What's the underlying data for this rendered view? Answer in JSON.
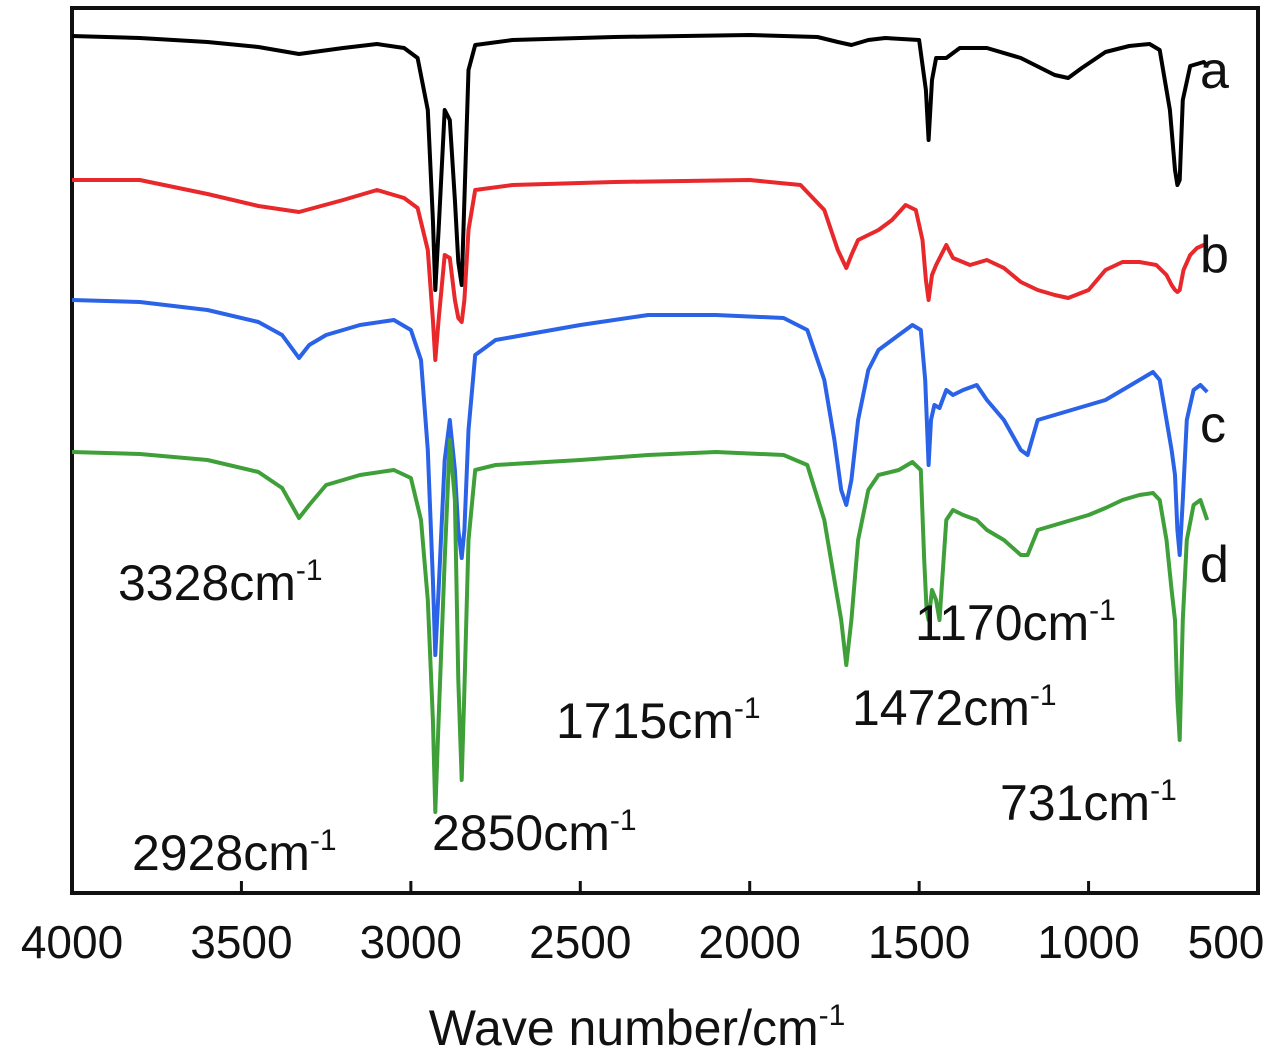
{
  "chart_data": {
    "type": "line",
    "x_axis": {
      "title": "Wave number/cm",
      "title_sup": "-1",
      "range": [
        4000,
        500
      ],
      "reversed": true,
      "ticks": [
        4000,
        3500,
        3000,
        2500,
        2000,
        1500,
        1000,
        500
      ],
      "tick_labels": [
        "4000",
        "3500",
        "3000",
        "2500",
        "2000",
        "1500",
        "1000",
        "500"
      ]
    },
    "y_axis": {
      "title": "",
      "ticks_shown": false
    },
    "grid": false,
    "series": [
      {
        "name": "a",
        "color": "#000000",
        "points": [
          [
            4000,
            36
          ],
          [
            3800,
            38
          ],
          [
            3600,
            42
          ],
          [
            3450,
            47
          ],
          [
            3330,
            54
          ],
          [
            3200,
            48
          ],
          [
            3100,
            44
          ],
          [
            3020,
            48
          ],
          [
            2980,
            58
          ],
          [
            2950,
            110
          ],
          [
            2935,
            220
          ],
          [
            2928,
            290
          ],
          [
            2918,
            230
          ],
          [
            2900,
            110
          ],
          [
            2885,
            120
          ],
          [
            2870,
            200
          ],
          [
            2860,
            262
          ],
          [
            2850,
            285
          ],
          [
            2842,
            200
          ],
          [
            2830,
            70
          ],
          [
            2810,
            45
          ],
          [
            2700,
            40
          ],
          [
            2400,
            37
          ],
          [
            2000,
            35
          ],
          [
            1800,
            37
          ],
          [
            1740,
            42
          ],
          [
            1700,
            45
          ],
          [
            1650,
            40
          ],
          [
            1600,
            38
          ],
          [
            1500,
            40
          ],
          [
            1480,
            90
          ],
          [
            1472,
            140
          ],
          [
            1462,
            80
          ],
          [
            1450,
            58
          ],
          [
            1420,
            58
          ],
          [
            1380,
            48
          ],
          [
            1300,
            48
          ],
          [
            1200,
            58
          ],
          [
            1100,
            75
          ],
          [
            1060,
            78
          ],
          [
            1020,
            68
          ],
          [
            950,
            52
          ],
          [
            880,
            46
          ],
          [
            820,
            44
          ],
          [
            790,
            50
          ],
          [
            760,
            110
          ],
          [
            745,
            170
          ],
          [
            738,
            185
          ],
          [
            731,
            180
          ],
          [
            722,
            100
          ],
          [
            700,
            66
          ],
          [
            660,
            62
          ],
          [
            650,
            66
          ]
        ]
      },
      {
        "name": "b",
        "color": "#e8282b",
        "points": [
          [
            4000,
            180
          ],
          [
            3800,
            180
          ],
          [
            3600,
            194
          ],
          [
            3450,
            206
          ],
          [
            3330,
            212
          ],
          [
            3200,
            200
          ],
          [
            3100,
            190
          ],
          [
            3020,
            198
          ],
          [
            2980,
            208
          ],
          [
            2950,
            250
          ],
          [
            2935,
            320
          ],
          [
            2928,
            360
          ],
          [
            2918,
            320
          ],
          [
            2900,
            255
          ],
          [
            2885,
            258
          ],
          [
            2870,
            300
          ],
          [
            2860,
            318
          ],
          [
            2850,
            322
          ],
          [
            2842,
            300
          ],
          [
            2830,
            230
          ],
          [
            2810,
            190
          ],
          [
            2700,
            185
          ],
          [
            2400,
            182
          ],
          [
            2000,
            180
          ],
          [
            1850,
            185
          ],
          [
            1780,
            210
          ],
          [
            1740,
            250
          ],
          [
            1715,
            268
          ],
          [
            1700,
            255
          ],
          [
            1680,
            240
          ],
          [
            1620,
            230
          ],
          [
            1580,
            220
          ],
          [
            1540,
            205
          ],
          [
            1510,
            210
          ],
          [
            1490,
            240
          ],
          [
            1480,
            280
          ],
          [
            1472,
            300
          ],
          [
            1462,
            275
          ],
          [
            1450,
            265
          ],
          [
            1420,
            245
          ],
          [
            1400,
            258
          ],
          [
            1350,
            265
          ],
          [
            1300,
            260
          ],
          [
            1250,
            268
          ],
          [
            1200,
            282
          ],
          [
            1150,
            290
          ],
          [
            1100,
            295
          ],
          [
            1060,
            298
          ],
          [
            1000,
            290
          ],
          [
            950,
            270
          ],
          [
            900,
            262
          ],
          [
            850,
            262
          ],
          [
            800,
            265
          ],
          [
            770,
            275
          ],
          [
            755,
            285
          ],
          [
            745,
            290
          ],
          [
            738,
            292
          ],
          [
            731,
            290
          ],
          [
            720,
            270
          ],
          [
            700,
            255
          ],
          [
            680,
            248
          ],
          [
            660,
            245
          ],
          [
            650,
            248
          ]
        ]
      },
      {
        "name": "c",
        "color": "#2a63e8",
        "points": [
          [
            4000,
            300
          ],
          [
            3800,
            302
          ],
          [
            3600,
            310
          ],
          [
            3450,
            322
          ],
          [
            3380,
            335
          ],
          [
            3330,
            358
          ],
          [
            3300,
            345
          ],
          [
            3250,
            335
          ],
          [
            3150,
            325
          ],
          [
            3050,
            320
          ],
          [
            3000,
            330
          ],
          [
            2970,
            360
          ],
          [
            2950,
            450
          ],
          [
            2935,
            580
          ],
          [
            2928,
            655
          ],
          [
            2918,
            590
          ],
          [
            2900,
            460
          ],
          [
            2885,
            420
          ],
          [
            2870,
            470
          ],
          [
            2860,
            530
          ],
          [
            2850,
            558
          ],
          [
            2842,
            530
          ],
          [
            2830,
            430
          ],
          [
            2810,
            355
          ],
          [
            2750,
            340
          ],
          [
            2500,
            325
          ],
          [
            2300,
            315
          ],
          [
            2100,
            315
          ],
          [
            1900,
            318
          ],
          [
            1830,
            330
          ],
          [
            1780,
            380
          ],
          [
            1750,
            440
          ],
          [
            1730,
            490
          ],
          [
            1715,
            505
          ],
          [
            1700,
            480
          ],
          [
            1680,
            420
          ],
          [
            1650,
            370
          ],
          [
            1620,
            350
          ],
          [
            1560,
            335
          ],
          [
            1520,
            325
          ],
          [
            1495,
            330
          ],
          [
            1482,
            380
          ],
          [
            1472,
            465
          ],
          [
            1465,
            420
          ],
          [
            1455,
            405
          ],
          [
            1440,
            408
          ],
          [
            1420,
            390
          ],
          [
            1400,
            395
          ],
          [
            1370,
            390
          ],
          [
            1330,
            385
          ],
          [
            1300,
            400
          ],
          [
            1250,
            420
          ],
          [
            1200,
            450
          ],
          [
            1180,
            455
          ],
          [
            1150,
            420
          ],
          [
            1100,
            415
          ],
          [
            1050,
            410
          ],
          [
            1000,
            405
          ],
          [
            950,
            400
          ],
          [
            900,
            390
          ],
          [
            850,
            380
          ],
          [
            810,
            372
          ],
          [
            790,
            380
          ],
          [
            770,
            420
          ],
          [
            755,
            450
          ],
          [
            745,
            475
          ],
          [
            738,
            530
          ],
          [
            731,
            555
          ],
          [
            722,
            500
          ],
          [
            710,
            420
          ],
          [
            690,
            390
          ],
          [
            670,
            385
          ],
          [
            650,
            392
          ]
        ]
      },
      {
        "name": "d",
        "color": "#3fa03a",
        "points": [
          [
            4000,
            452
          ],
          [
            3800,
            454
          ],
          [
            3600,
            460
          ],
          [
            3450,
            472
          ],
          [
            3380,
            488
          ],
          [
            3330,
            518
          ],
          [
            3300,
            505
          ],
          [
            3250,
            485
          ],
          [
            3150,
            475
          ],
          [
            3050,
            470
          ],
          [
            3000,
            478
          ],
          [
            2970,
            520
          ],
          [
            2950,
            600
          ],
          [
            2935,
            720
          ],
          [
            2928,
            812
          ],
          [
            2918,
            720
          ],
          [
            2900,
            560
          ],
          [
            2885,
            440
          ],
          [
            2870,
            500
          ],
          [
            2860,
            680
          ],
          [
            2850,
            780
          ],
          [
            2842,
            690
          ],
          [
            2830,
            540
          ],
          [
            2810,
            470
          ],
          [
            2750,
            465
          ],
          [
            2500,
            460
          ],
          [
            2300,
            455
          ],
          [
            2100,
            452
          ],
          [
            1900,
            455
          ],
          [
            1830,
            465
          ],
          [
            1780,
            520
          ],
          [
            1750,
            580
          ],
          [
            1730,
            620
          ],
          [
            1715,
            665
          ],
          [
            1700,
            620
          ],
          [
            1680,
            540
          ],
          [
            1650,
            490
          ],
          [
            1620,
            475
          ],
          [
            1560,
            470
          ],
          [
            1520,
            462
          ],
          [
            1495,
            470
          ],
          [
            1485,
            560
          ],
          [
            1478,
            610
          ],
          [
            1472,
            620
          ],
          [
            1462,
            590
          ],
          [
            1450,
            600
          ],
          [
            1440,
            620
          ],
          [
            1430,
            570
          ],
          [
            1420,
            520
          ],
          [
            1400,
            510
          ],
          [
            1370,
            515
          ],
          [
            1330,
            520
          ],
          [
            1300,
            530
          ],
          [
            1250,
            540
          ],
          [
            1200,
            555
          ],
          [
            1180,
            555
          ],
          [
            1150,
            530
          ],
          [
            1100,
            525
          ],
          [
            1050,
            520
          ],
          [
            1000,
            515
          ],
          [
            950,
            508
          ],
          [
            900,
            500
          ],
          [
            850,
            495
          ],
          [
            810,
            493
          ],
          [
            790,
            500
          ],
          [
            770,
            540
          ],
          [
            755,
            590
          ],
          [
            745,
            620
          ],
          [
            738,
            700
          ],
          [
            731,
            740
          ],
          [
            722,
            620
          ],
          [
            710,
            540
          ],
          [
            690,
            505
          ],
          [
            670,
            500
          ],
          [
            650,
            520
          ]
        ]
      }
    ],
    "series_labels": [
      "a",
      "b",
      "c",
      "d"
    ],
    "annotations": [
      {
        "text": "3328cm",
        "sup": "-1"
      },
      {
        "text": "2928cm",
        "sup": "-1"
      },
      {
        "text": "2850cm",
        "sup": "-1"
      },
      {
        "text": "1715cm",
        "sup": "-1"
      },
      {
        "text": "1472cm",
        "sup": "-1"
      },
      {
        "text": "1170cm",
        "sup": "-1"
      },
      {
        "text": "731cm",
        "sup": "-1"
      }
    ]
  }
}
